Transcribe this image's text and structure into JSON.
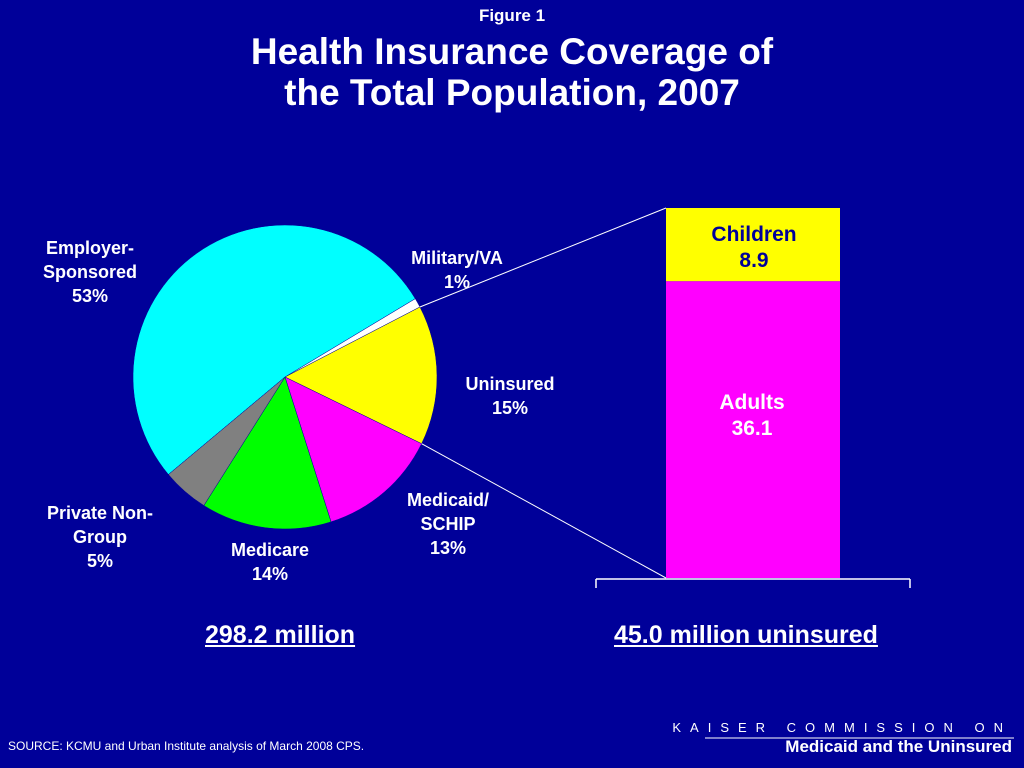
{
  "figure_label": "Figure 1",
  "title_lines": [
    "Health Insurance Coverage of",
    "the Total Population, 2007"
  ],
  "colors": {
    "background": "#000099",
    "employer": "#00FFFF",
    "military": "#FFFFFF",
    "uninsured": "#FFFF00",
    "medicaid": "#FF00FF",
    "medicare": "#00FF00",
    "private": "#808080"
  },
  "chart_data": [
    {
      "type": "pie",
      "title": "298.2 million",
      "slices": [
        {
          "label_lines": [
            "Employer-",
            "Sponsored",
            "53%"
          ],
          "value": 53,
          "color": "#00FFFF"
        },
        {
          "label_lines": [
            "Military/VA",
            "1%"
          ],
          "value": 1,
          "color": "#FFFFFF"
        },
        {
          "label_lines": [
            "Uninsured",
            "15%"
          ],
          "value": 15,
          "color": "#FFFF00"
        },
        {
          "label_lines": [
            "Medicaid/",
            "SCHIP",
            "13%"
          ],
          "value": 13,
          "color": "#FF00FF"
        },
        {
          "label_lines": [
            "Medicare",
            "14%"
          ],
          "value": 14,
          "color": "#00FF00"
        },
        {
          "label_lines": [
            "Private Non-",
            "Group",
            "5%"
          ],
          "value": 5,
          "color": "#808080"
        }
      ]
    },
    {
      "type": "bar",
      "stacked": true,
      "title": "45.0 million uninsured",
      "categories": [
        "Uninsured"
      ],
      "series": [
        {
          "name": "Adults",
          "values": [
            36.1
          ],
          "color": "#FF00FF"
        },
        {
          "name": "Children",
          "values": [
            8.9
          ],
          "color": "#FFFF00"
        }
      ],
      "ylim": [
        0,
        45.0
      ]
    }
  ],
  "source": "SOURCE: KCMU and Urban Institute analysis of March 2008 CPS.",
  "brand": {
    "line1": "KAISER COMMISSION ON",
    "line2": "Medicaid and the Uninsured"
  }
}
